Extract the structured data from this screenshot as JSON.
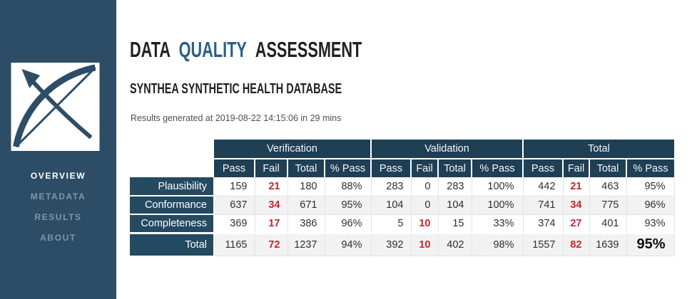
{
  "colors": {
    "sidebar_bg": "#2d4d66",
    "table_header_bg": "#1f3f55",
    "row_label_bg": "#234a61",
    "accent_blue": "#2a5f85",
    "fail_red": "#c4262d",
    "row_alt_bg": "#f2f2f2"
  },
  "sidebar": {
    "logo_icon": "archery-bow-and-arrow",
    "items": [
      {
        "label": "OVERVIEW",
        "active": true
      },
      {
        "label": "METADATA",
        "active": false
      },
      {
        "label": "RESULTS",
        "active": false
      },
      {
        "label": "ABOUT",
        "active": false
      }
    ]
  },
  "header": {
    "title_part1": "DATA",
    "title_accent": "QUALITY",
    "title_part3": "ASSESSMENT",
    "subtitle": "SYNTHEA SYNTHETIC HEALTH DATABASE",
    "generated_note": "Results generated at 2019-08-22 14:15:06 in 29 mins"
  },
  "table": {
    "groups": [
      "Verification",
      "Validation",
      "Total"
    ],
    "subcolumns": [
      "Pass",
      "Fail",
      "Total",
      "% Pass"
    ],
    "rows": [
      {
        "label": "Plausibility",
        "cells": [
          "159",
          "21",
          "180",
          "88%",
          "283",
          "0",
          "283",
          "100%",
          "442",
          "21",
          "463",
          "95%"
        ]
      },
      {
        "label": "Conformance",
        "cells": [
          "637",
          "34",
          "671",
          "95%",
          "104",
          "0",
          "104",
          "100%",
          "741",
          "34",
          "775",
          "96%"
        ]
      },
      {
        "label": "Completeness",
        "cells": [
          "369",
          "17",
          "386",
          "96%",
          "5",
          "10",
          "15",
          "33%",
          "374",
          "27",
          "401",
          "93%"
        ]
      },
      {
        "label": "Total",
        "is_total": true,
        "cells": [
          "1165",
          "72",
          "1237",
          "94%",
          "392",
          "10",
          "402",
          "98%",
          "1557",
          "82",
          "1639",
          "95%"
        ]
      }
    ]
  }
}
